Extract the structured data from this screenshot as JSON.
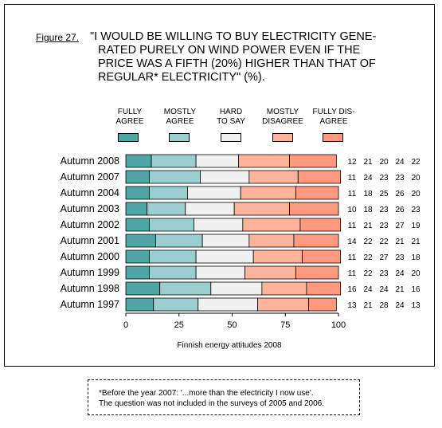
{
  "figure_label": "Figure 27.",
  "title_lines": [
    "\"I WOULD BE WILLING TO BUY ELECTRICITY GENE-",
    "RATED PURELY ON WIND POWER EVEN IF THE",
    "PRICE WAS A FIFTH (20%) HIGHER THAN THAT OF",
    "REGULAR* ELECTRICITY\"  (%)."
  ],
  "legend": [
    {
      "line1": "FULLY",
      "line2": "AGREE",
      "color": "#4fa6a6"
    },
    {
      "line1": "MOSTLY",
      "line2": "AGREE",
      "color": "#9bcfcf"
    },
    {
      "line1": "HARD",
      "line2": "TO SAY",
      "color": "#f0f0f0"
    },
    {
      "line1": "MOSTLY",
      "line2": "DISAGREE",
      "color": "#ffb49a"
    },
    {
      "line1": "FULLY DIS-",
      "line2": "AGREE",
      "color": "#ff9a80"
    }
  ],
  "chart_data": {
    "type": "bar",
    "orientation": "horizontal",
    "stacked": true,
    "categories": [
      "Autumn 2008",
      "Autumn 2007",
      "Autumn 2004",
      "Autumn 2003",
      "Autumn 2002",
      "Autumn 2001",
      "Autumn 2000",
      "Autumn 1999",
      "Autumn 1998",
      "Autumn 1997"
    ],
    "series": [
      {
        "name": "FULLY AGREE",
        "values": [
          12,
          11,
          11,
          10,
          11,
          14,
          11,
          11,
          16,
          13
        ]
      },
      {
        "name": "MOSTLY AGREE",
        "values": [
          21,
          24,
          18,
          18,
          21,
          22,
          22,
          22,
          24,
          21
        ]
      },
      {
        "name": "HARD TO SAY",
        "values": [
          20,
          23,
          25,
          23,
          23,
          22,
          27,
          23,
          24,
          28
        ]
      },
      {
        "name": "MOSTLY DISAGREE",
        "values": [
          24,
          23,
          26,
          26,
          27,
          21,
          23,
          24,
          21,
          24
        ]
      },
      {
        "name": "FULLY DISAGREE",
        "values": [
          22,
          20,
          20,
          23,
          19,
          21,
          18,
          20,
          16,
          13
        ]
      }
    ],
    "xlim": [
      0,
      100
    ],
    "xticks": [
      0,
      25,
      50,
      75,
      100
    ],
    "xlabel": "Finnish energy attitudes 2008",
    "grid": false,
    "legend_position": "top"
  },
  "note_lines": [
    "*Before the year 2007: '...more than the electricity I now use'.",
    " The question was not included in the surveys of 2005 and 2006."
  ]
}
